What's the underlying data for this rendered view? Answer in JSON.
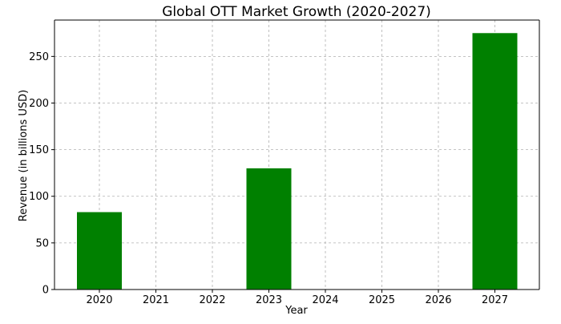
{
  "colors": {
    "bar": "#008000",
    "grid": "#b0b0b0",
    "axis": "#000000"
  },
  "chart_data": {
    "type": "bar",
    "title": "Global OTT Market Growth (2020-2027)",
    "xlabel": "Year",
    "ylabel": "Revenue (in billions USD)",
    "categories": [
      "2020",
      "2021",
      "2022",
      "2023",
      "2024",
      "2025",
      "2026",
      "2027"
    ],
    "values": [
      83,
      null,
      null,
      130,
      null,
      null,
      null,
      275
    ],
    "yticks": [
      0,
      50,
      100,
      150,
      200,
      250
    ],
    "ylim": [
      0,
      289
    ],
    "grid": true
  }
}
